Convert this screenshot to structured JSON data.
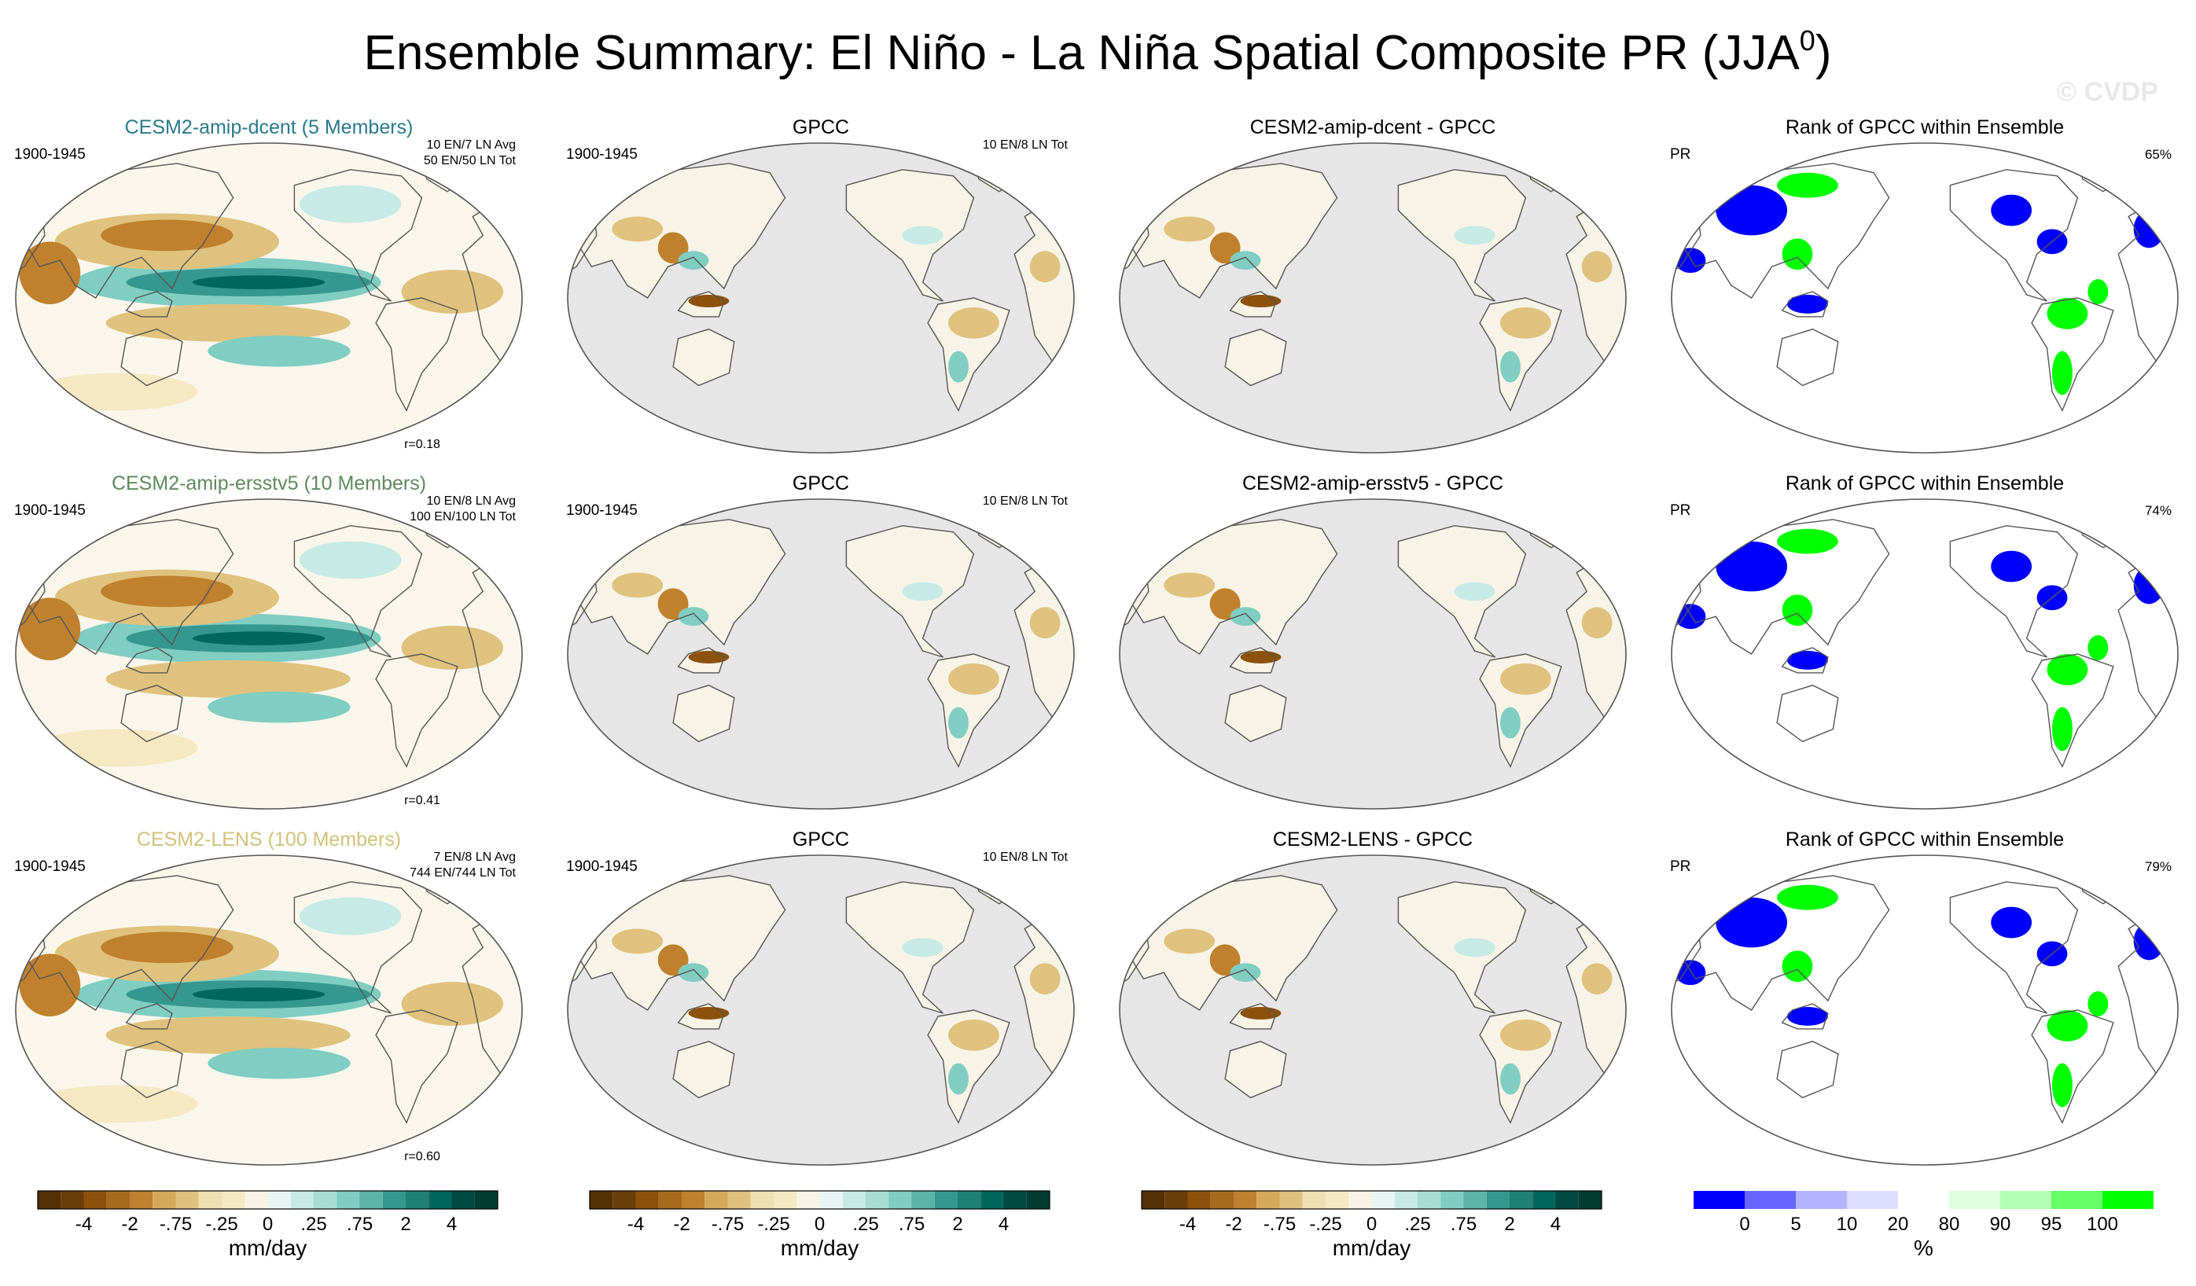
{
  "title": {
    "main": "Ensemble Summary: El Niño - La Niña Spatial Composite PR (JJA",
    "sup": "0",
    "close": ")"
  },
  "watermark": "© CVDP",
  "chart_data": {
    "type": "map-panel-grid",
    "variable": "PR",
    "season": "JJA",
    "rows": [
      {
        "ensemble": {
          "title": "CESM2-amip-dcent (5 Members)",
          "title_color": "#2a7a8a",
          "period": "1900-1945",
          "info": [
            "10 EN/7 LN Avg",
            "50 EN/50 LN Tot"
          ],
          "r": "r=0.18"
        },
        "obs": {
          "title": "GPCC",
          "period": "1900-1945",
          "info": [
            "10 EN/8 LN Tot"
          ]
        },
        "diff": {
          "title": "CESM2-amip-dcent - GPCC"
        },
        "rank": {
          "title": "Rank of GPCC within Ensemble",
          "var": "PR",
          "pct": "65%"
        }
      },
      {
        "ensemble": {
          "title": "CESM2-amip-ersstv5 (10 Members)",
          "title_color": "#5e8a5e",
          "period": "1900-1945",
          "info": [
            "10 EN/8 LN Avg",
            "100 EN/100 LN Tot"
          ],
          "r": "r=0.41"
        },
        "obs": {
          "title": "GPCC",
          "period": "1900-1945",
          "info": [
            "10 EN/8 LN Tot"
          ]
        },
        "diff": {
          "title": "CESM2-amip-ersstv5 - GPCC"
        },
        "rank": {
          "title": "Rank of GPCC within Ensemble",
          "var": "PR",
          "pct": "74%"
        }
      },
      {
        "ensemble": {
          "title": "CESM2-LENS (100 Members)",
          "title_color": "#d2c27a",
          "period": "1900-1945",
          "info": [
            "7 EN/8 LN Avg",
            "744 EN/744 LN Tot"
          ],
          "r": "r=0.60"
        },
        "obs": {
          "title": "GPCC",
          "period": "1900-1945",
          "info": [
            "10 EN/8 LN Tot"
          ]
        },
        "diff": {
          "title": "CESM2-LENS - GPCC"
        },
        "rank": {
          "title": "Rank of GPCC within Ensemble",
          "var": "PR",
          "pct": "79%"
        }
      }
    ],
    "colorbar_precip": {
      "colors": [
        "#543005",
        "#6b3d0a",
        "#8c510a",
        "#a66a1e",
        "#bf812d",
        "#d4a95c",
        "#dfc27d",
        "#efe0b2",
        "#f6e8c3",
        "#f7f3e6",
        "#eaf5f3",
        "#c7eae5",
        "#a8ddd4",
        "#80cdc1",
        "#5ab4aa",
        "#35978f",
        "#1f8077",
        "#01665e",
        "#014a42",
        "#003c30"
      ],
      "tick_labels": [
        "-4",
        "-2",
        "-.75",
        "-.25",
        "0",
        ".25",
        ".75",
        "2",
        "4"
      ],
      "tick_boundaries": [
        2,
        4,
        6,
        8,
        10,
        12,
        14,
        16,
        18
      ],
      "units": "mm/day"
    },
    "colorbar_rank": {
      "colors": [
        "#0000ff",
        "#6666ff",
        "#b3b3ff",
        "#ddddff",
        "#ffffff",
        "#ddffdd",
        "#b3ffb3",
        "#66ff66",
        "#00ff00"
      ],
      "boundaries": [
        0,
        5,
        10,
        20,
        80,
        90,
        95,
        100
      ],
      "tick_labels": [
        "0",
        "5",
        "10",
        "20",
        "80",
        "90",
        "95",
        "100"
      ],
      "tick_boundaries": [
        1,
        2,
        3,
        4,
        5,
        6,
        7,
        8
      ],
      "units": "%"
    }
  }
}
